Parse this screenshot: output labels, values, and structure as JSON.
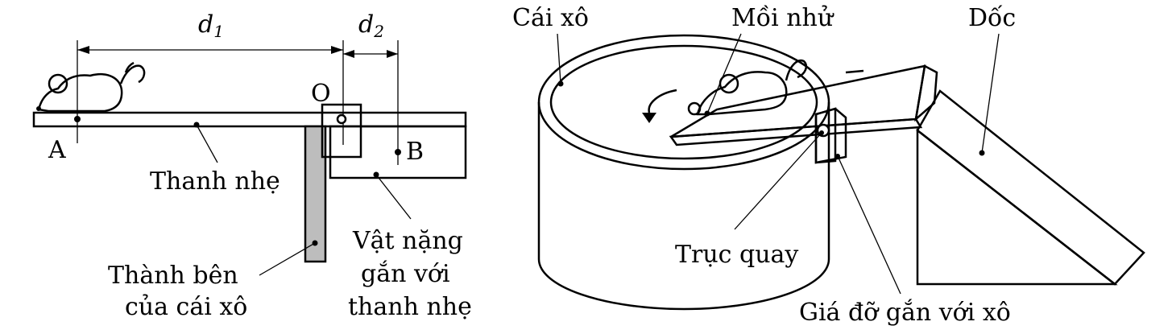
{
  "left": {
    "d1": {
      "main": "d",
      "sub": "1"
    },
    "d2": {
      "main": "d",
      "sub": "2"
    },
    "O": "O",
    "A": "A",
    "B": "B",
    "rod": "Thanh nhẹ",
    "wall": [
      "Thành bên",
      "của cái xô"
    ],
    "weight": [
      "Vật nặng",
      "gắn với",
      "thanh nhẹ"
    ]
  },
  "right": {
    "bucket": "Cái xô",
    "bait": "Mồi nhử",
    "ramp": "Dốc",
    "axis": "Trục quay",
    "support": "Giá đỡ gắn với xô"
  }
}
